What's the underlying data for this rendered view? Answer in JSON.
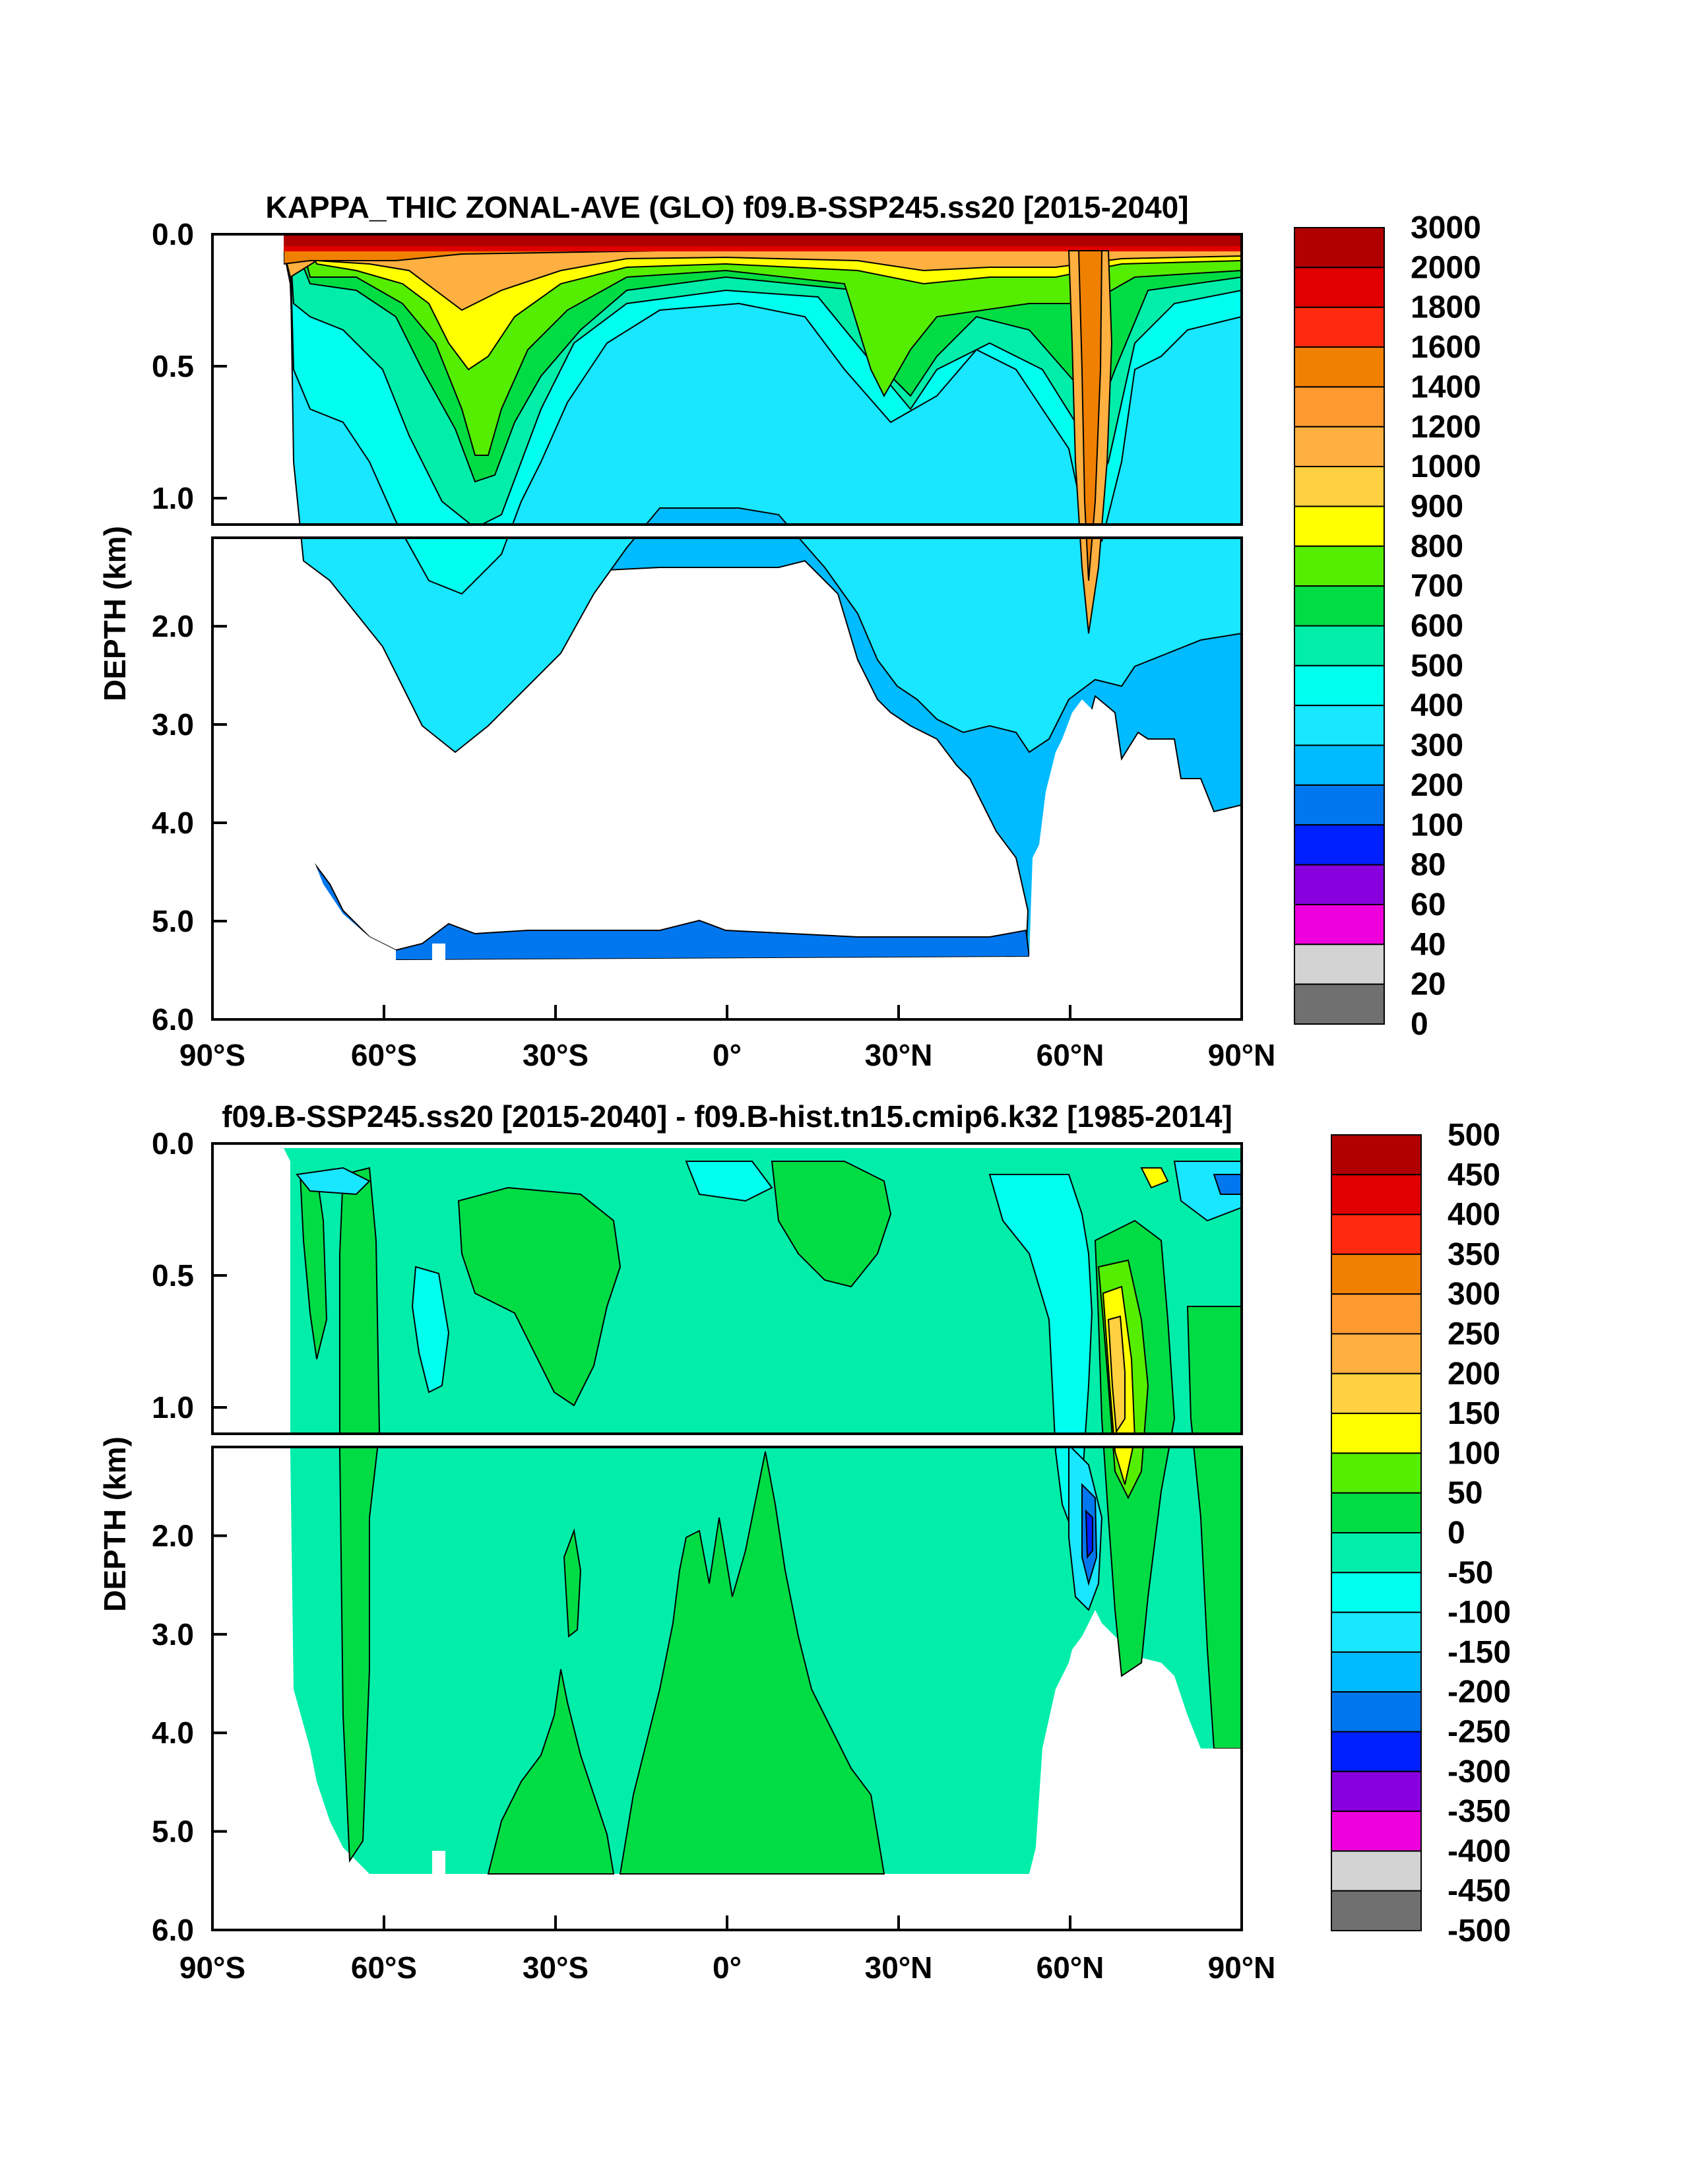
{
  "chart_data": [
    {
      "type": "heatmap",
      "title": "KAPPA_THIC ZONAL-AVE (GLO) f09.B-SSP245.ss20 [2015-2040]",
      "ylabel": "DEPTH (km)",
      "xlabel": "",
      "x_ticks": [
        "90°S",
        "60°S",
        "30°S",
        "0°",
        "30°N",
        "60°N",
        "90°N"
      ],
      "x_tick_values": [
        -90,
        -60,
        -30,
        0,
        30,
        60,
        90
      ],
      "y_ticks_upper": [
        "0.0",
        "0.5",
        "1.0"
      ],
      "y_tick_values_upper": [
        0.0,
        0.5,
        1.0
      ],
      "y_ticks_lower": [
        "2.0",
        "3.0",
        "4.0",
        "5.0",
        "6.0"
      ],
      "y_tick_values_lower": [
        2.0,
        3.0,
        4.0,
        5.0,
        6.0
      ],
      "xlim": [
        -90,
        90
      ],
      "ylim_upper": [
        0.0,
        1.1
      ],
      "ylim_lower": [
        1.1,
        6.0
      ],
      "colorbar_labels": [
        "3000",
        "2000",
        "1800",
        "1600",
        "1400",
        "1200",
        "1000",
        "900",
        "800",
        "700",
        "600",
        "500",
        "400",
        "300",
        "200",
        "100",
        "80",
        "60",
        "40",
        "20",
        "0"
      ],
      "colorbar_colors": [
        "#b00000",
        "#e00000",
        "#ff2a10",
        "#f08000",
        "#ff9a30",
        "#ffb040",
        "#ffd040",
        "#ffff00",
        "#55ee00",
        "#00dd44",
        "#00eeaa",
        "#00ffee",
        "#19e6ff",
        "#00bbff",
        "#0077ee",
        "#0020ff",
        "#8800dd",
        "#ee00dd",
        "#d3d3d3",
        "#707070"
      ],
      "bathymetry_max_depth_km": [
        [
          -78,
          0.7
        ],
        [
          -76,
          3.3
        ],
        [
          -72,
          4.0
        ],
        [
          -68,
          4.7
        ],
        [
          -62,
          5.2
        ],
        [
          -58,
          5.35
        ],
        [
          -50,
          5.3
        ],
        [
          -40,
          5.35
        ],
        [
          -20,
          5.3
        ],
        [
          0,
          5.3
        ],
        [
          20,
          5.3
        ],
        [
          40,
          5.35
        ],
        [
          52,
          5.35
        ],
        [
          54,
          4.6
        ],
        [
          58,
          3.9
        ],
        [
          62,
          3.0
        ],
        [
          64,
          2.9
        ],
        [
          66,
          3.4
        ],
        [
          70,
          3.6
        ],
        [
          74,
          3.9
        ],
        [
          80,
          4.1
        ],
        [
          88,
          4.1
        ],
        [
          90,
          3.8
        ]
      ],
      "land_lat_south_km": -78
    },
    {
      "type": "heatmap",
      "title": "f09.B-SSP245.ss20 [2015-2040] - f09.B-hist.tn15.cmip6.k32 [1985-2014]",
      "ylabel": "DEPTH (km)",
      "xlabel": "",
      "x_ticks": [
        "90°S",
        "60°S",
        "30°S",
        "0°",
        "30°N",
        "60°N",
        "90°N"
      ],
      "x_tick_values": [
        -90,
        -60,
        -30,
        0,
        30,
        60,
        90
      ],
      "y_ticks_upper": [
        "0.0",
        "0.5",
        "1.0"
      ],
      "y_tick_values_upper": [
        0.0,
        0.5,
        1.0
      ],
      "y_ticks_lower": [
        "2.0",
        "3.0",
        "4.0",
        "5.0",
        "6.0"
      ],
      "y_tick_values_lower": [
        2.0,
        3.0,
        4.0,
        5.0,
        6.0
      ],
      "xlim": [
        -90,
        90
      ],
      "ylim_upper": [
        0.0,
        1.1
      ],
      "ylim_lower": [
        1.1,
        6.0
      ],
      "colorbar_labels": [
        "500",
        "450",
        "400",
        "350",
        "300",
        "250",
        "200",
        "150",
        "100",
        "50",
        "0",
        "-50",
        "-100",
        "-150",
        "-200",
        "-250",
        "-300",
        "-350",
        "-400",
        "-450",
        "-500"
      ],
      "colorbar_colors": [
        "#b00000",
        "#e00000",
        "#ff2a10",
        "#f08000",
        "#ff9a30",
        "#ffb040",
        "#ffd040",
        "#ffff00",
        "#55ee00",
        "#00dd44",
        "#00eeaa",
        "#00ffee",
        "#19e6ff",
        "#00bbff",
        "#0077ee",
        "#0020ff",
        "#8800dd",
        "#ee00dd",
        "#d3d3d3",
        "#707070"
      ],
      "background_value_color": "#00eeaa"
    }
  ]
}
